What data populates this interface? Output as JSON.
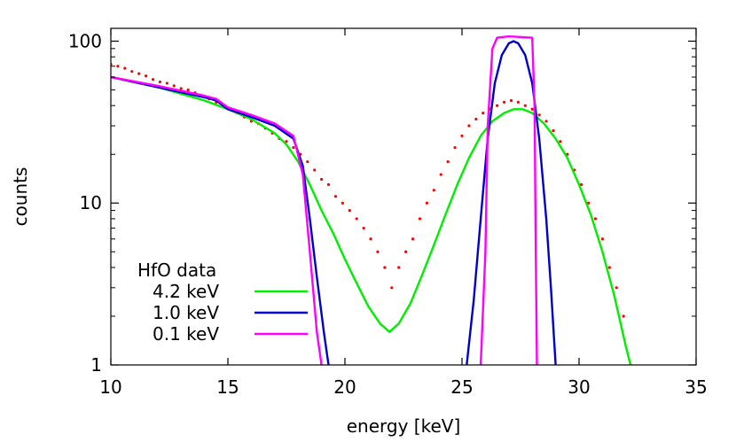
{
  "chart_data": {
    "type": "scatter",
    "title": "",
    "xlabel": "energy [keV]",
    "ylabel": "counts",
    "xlim": [
      10,
      35
    ],
    "ylim": [
      1,
      120
    ],
    "yscale": "log",
    "grid": false,
    "legend_position": "bottom-left",
    "x_ticks": [
      10,
      15,
      20,
      25,
      30,
      35
    ],
    "x_tick_labels": [
      "10",
      "15",
      "20",
      "25",
      "30",
      "35"
    ],
    "y_ticks": [
      1,
      10,
      100
    ],
    "y_tick_labels": [
      "1",
      "10",
      "100"
    ],
    "series": [
      {
        "name": "HfO data",
        "kind": "points",
        "color": "#ff0000",
        "points": [
          [
            10.0,
            72
          ],
          [
            10.3,
            70
          ],
          [
            10.6,
            68
          ],
          [
            10.9,
            65
          ],
          [
            11.2,
            63
          ],
          [
            11.5,
            61
          ],
          [
            11.8,
            58
          ],
          [
            12.1,
            56
          ],
          [
            12.4,
            55
          ],
          [
            12.7,
            53
          ],
          [
            13.0,
            51
          ],
          [
            13.3,
            50
          ],
          [
            13.6,
            48
          ],
          [
            13.9,
            46
          ],
          [
            14.2,
            44
          ],
          [
            14.5,
            42
          ],
          [
            14.8,
            40
          ],
          [
            15.1,
            38
          ],
          [
            15.4,
            36
          ],
          [
            15.7,
            34
          ],
          [
            16.0,
            32
          ],
          [
            16.3,
            31
          ],
          [
            16.6,
            29
          ],
          [
            16.9,
            27
          ],
          [
            17.2,
            25
          ],
          [
            17.5,
            24
          ],
          [
            17.8,
            22
          ],
          [
            18.1,
            20
          ],
          [
            18.4,
            18
          ],
          [
            18.7,
            16
          ],
          [
            19.0,
            14
          ],
          [
            19.3,
            13
          ],
          [
            19.6,
            11
          ],
          [
            19.9,
            10
          ],
          [
            20.2,
            9
          ],
          [
            20.5,
            8
          ],
          [
            20.8,
            7
          ],
          [
            21.1,
            6
          ],
          [
            21.4,
            5
          ],
          [
            21.7,
            4
          ],
          [
            22.0,
            3
          ],
          [
            22.3,
            4
          ],
          [
            22.6,
            5
          ],
          [
            22.9,
            6
          ],
          [
            23.2,
            8
          ],
          [
            23.5,
            10
          ],
          [
            23.8,
            12
          ],
          [
            24.1,
            15
          ],
          [
            24.4,
            18
          ],
          [
            24.7,
            22
          ],
          [
            25.0,
            26
          ],
          [
            25.3,
            30
          ],
          [
            25.6,
            33
          ],
          [
            25.9,
            36
          ],
          [
            26.2,
            38
          ],
          [
            26.5,
            40
          ],
          [
            26.8,
            42
          ],
          [
            27.1,
            43
          ],
          [
            27.4,
            42
          ],
          [
            27.7,
            40
          ],
          [
            28.0,
            38
          ],
          [
            28.3,
            35
          ],
          [
            28.6,
            32
          ],
          [
            28.9,
            28
          ],
          [
            29.2,
            24
          ],
          [
            29.5,
            20
          ],
          [
            29.8,
            16
          ],
          [
            30.1,
            13
          ],
          [
            30.4,
            10
          ],
          [
            30.7,
            8
          ],
          [
            31.0,
            6
          ],
          [
            31.3,
            4
          ],
          [
            31.6,
            3
          ],
          [
            31.9,
            2
          ],
          [
            32.2,
            1
          ]
        ]
      },
      {
        "name": "4.2 keV",
        "kind": "line",
        "color": "#00ee00",
        "points": [
          [
            10,
            60
          ],
          [
            12,
            52
          ],
          [
            14,
            43
          ],
          [
            15,
            38
          ],
          [
            16,
            33
          ],
          [
            17,
            27
          ],
          [
            17.5,
            23
          ],
          [
            18,
            18
          ],
          [
            18.5,
            13
          ],
          [
            19,
            9
          ],
          [
            19.5,
            6.5
          ],
          [
            20,
            4.5
          ],
          [
            20.5,
            3.2
          ],
          [
            21,
            2.3
          ],
          [
            21.5,
            1.8
          ],
          [
            21.9,
            1.6
          ],
          [
            22.3,
            1.8
          ],
          [
            22.8,
            2.4
          ],
          [
            23.3,
            3.6
          ],
          [
            23.8,
            5.5
          ],
          [
            24.3,
            8.5
          ],
          [
            24.8,
            13
          ],
          [
            25.3,
            19
          ],
          [
            25.8,
            26
          ],
          [
            26.3,
            32
          ],
          [
            26.8,
            36
          ],
          [
            27.2,
            38
          ],
          [
            27.6,
            38
          ],
          [
            28.0,
            36
          ],
          [
            28.5,
            31
          ],
          [
            29.0,
            25
          ],
          [
            29.5,
            19
          ],
          [
            30.0,
            13
          ],
          [
            30.5,
            8.5
          ],
          [
            31.0,
            5
          ],
          [
            31.5,
            2.7
          ],
          [
            32.0,
            1.3
          ],
          [
            32.2,
            1.0
          ]
        ]
      },
      {
        "name": "1.0 keV",
        "kind": "line",
        "color": "#0000cc",
        "points": [
          [
            10,
            60
          ],
          [
            12,
            52
          ],
          [
            14,
            45
          ],
          [
            14.5,
            43
          ],
          [
            15,
            38
          ],
          [
            16,
            34
          ],
          [
            17,
            30
          ],
          [
            17.8,
            25
          ],
          [
            18.2,
            17
          ],
          [
            18.5,
            8
          ],
          [
            18.8,
            3.5
          ],
          [
            19.1,
            1.6
          ],
          [
            19.3,
            1.0
          ],
          [
            null,
            null
          ],
          [
            25.2,
            1.0
          ],
          [
            25.5,
            2.5
          ],
          [
            25.8,
            8
          ],
          [
            26.1,
            25
          ],
          [
            26.4,
            55
          ],
          [
            26.7,
            82
          ],
          [
            27.0,
            97
          ],
          [
            27.2,
            100
          ],
          [
            27.4,
            97
          ],
          [
            27.7,
            82
          ],
          [
            28.0,
            55
          ],
          [
            28.3,
            25
          ],
          [
            28.6,
            8
          ],
          [
            28.8,
            3
          ],
          [
            29.0,
            1.0
          ]
        ]
      },
      {
        "name": "0.1 keV",
        "kind": "line",
        "color": "#ff00ff",
        "points": [
          [
            10,
            60
          ],
          [
            12,
            53
          ],
          [
            14,
            46
          ],
          [
            14.5,
            44
          ],
          [
            15,
            39
          ],
          [
            16,
            35
          ],
          [
            17,
            31
          ],
          [
            17.8,
            26
          ],
          [
            18.2,
            15
          ],
          [
            18.5,
            5
          ],
          [
            18.8,
            1.6
          ],
          [
            19.0,
            1.0
          ],
          [
            null,
            null
          ],
          [
            25.8,
            1.0
          ],
          [
            26.0,
            5
          ],
          [
            26.1,
            30
          ],
          [
            26.3,
            90
          ],
          [
            26.5,
            105
          ],
          [
            27.0,
            107
          ],
          [
            27.5,
            106
          ],
          [
            28.0,
            105
          ],
          [
            28.1,
            40
          ],
          [
            28.15,
            5
          ],
          [
            28.2,
            1.0
          ]
        ]
      }
    ]
  }
}
